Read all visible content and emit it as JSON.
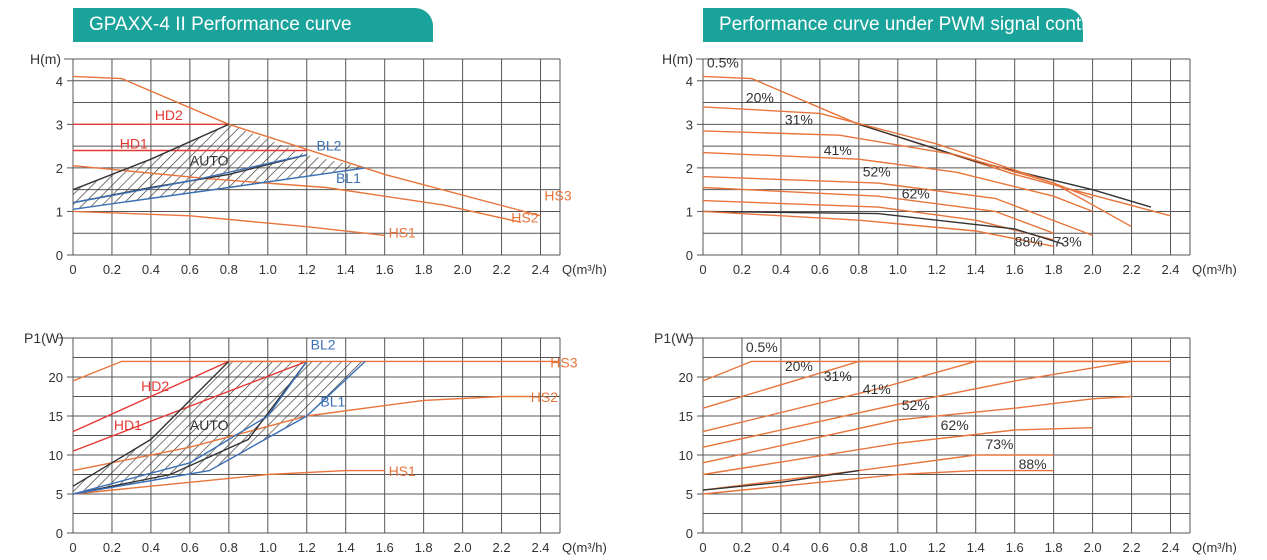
{
  "headers": {
    "left": "GPAXX-4 II Performance curve",
    "right": "Performance curve under PWM signal control"
  },
  "colors": {
    "orange": "#e8743b",
    "red": "#e53935",
    "blue": "#3a6fb5",
    "dark": "#333333",
    "teal": "#1aa39a"
  },
  "chart_data": [
    {
      "id": "hq_main",
      "type": "line",
      "ylabel": "H(m)",
      "xlabel": "Q(m³/h)",
      "xlim": [
        0,
        2.5
      ],
      "ylim": [
        0,
        4.5
      ],
      "xticks": [
        "0",
        "0.2",
        "0.4",
        "0.6",
        "0.8",
        "1.0",
        "1.2",
        "1.4",
        "1.6",
        "1.8",
        "2.0",
        "2.2",
        "2.4"
      ],
      "yticks": [
        "0",
        "1",
        "2",
        "3",
        "4"
      ],
      "series": [
        {
          "name": "HS3",
          "color": "orange",
          "points": [
            [
              0,
              4.1
            ],
            [
              0.25,
              4.05
            ],
            [
              0.8,
              3.0
            ],
            [
              1.6,
              1.85
            ],
            [
              2.4,
              0.9
            ]
          ]
        },
        {
          "name": "HS2",
          "color": "orange",
          "points": [
            [
              0,
              2.05
            ],
            [
              0.7,
              1.75
            ],
            [
              1.3,
              1.55
            ],
            [
              1.9,
              1.15
            ],
            [
              2.3,
              0.75
            ]
          ]
        },
        {
          "name": "HS1",
          "color": "orange",
          "points": [
            [
              0,
              1.0
            ],
            [
              0.6,
              0.9
            ],
            [
              1.2,
              0.65
            ],
            [
              1.6,
              0.45
            ]
          ]
        },
        {
          "name": "HD2",
          "color": "red",
          "points": [
            [
              0,
              3.0
            ],
            [
              0.8,
              3.0
            ]
          ]
        },
        {
          "name": "HD1",
          "color": "red",
          "points": [
            [
              0,
              2.4
            ],
            [
              1.2,
              2.4
            ]
          ]
        },
        {
          "name": "AUTO",
          "color": "dark",
          "points": [
            [
              0,
              1.5
            ],
            [
              0.4,
              2.2
            ],
            [
              0.8,
              3.0
            ]
          ]
        },
        {
          "name": "",
          "color": "dark",
          "points": [
            [
              0,
              1.2
            ],
            [
              0.4,
              1.55
            ],
            [
              0.8,
              1.85
            ],
            [
              1.2,
              2.3
            ]
          ]
        },
        {
          "name": "BL2",
          "color": "blue",
          "points": [
            [
              0,
              1.2
            ],
            [
              0.6,
              1.7
            ],
            [
              1.2,
              2.3
            ]
          ]
        },
        {
          "name": "BL1",
          "color": "blue",
          "points": [
            [
              0,
              1.05
            ],
            [
              0.8,
              1.55
            ],
            [
              1.5,
              2.0
            ]
          ]
        }
      ],
      "labels": [
        {
          "text": "HD2",
          "x": 0.42,
          "y": 3.1,
          "color": "red"
        },
        {
          "text": "HD1",
          "x": 0.24,
          "y": 2.45,
          "color": "red"
        },
        {
          "text": "AUTO",
          "x": 0.6,
          "y": 2.05,
          "color": "dark"
        },
        {
          "text": "BL2",
          "x": 1.25,
          "y": 2.4,
          "color": "blue"
        },
        {
          "text": "BL1",
          "x": 1.35,
          "y": 1.65,
          "color": "blue"
        },
        {
          "text": "HS3",
          "x": 2.42,
          "y": 1.25,
          "color": "orange"
        },
        {
          "text": "HS2",
          "x": 2.25,
          "y": 0.75,
          "color": "orange"
        },
        {
          "text": "HS1",
          "x": 1.62,
          "y": 0.4,
          "color": "orange"
        }
      ]
    },
    {
      "id": "hq_pwm",
      "type": "line",
      "ylabel": "H(m)",
      "xlabel": "Q(m³/h)",
      "xlim": [
        0,
        2.5
      ],
      "ylim": [
        0,
        4.5
      ],
      "xticks": [
        "0",
        "0.2",
        "0.4",
        "0.6",
        "0.8",
        "1.0",
        "1.2",
        "1.4",
        "1.6",
        "1.8",
        "2.0",
        "2.2",
        "2.4"
      ],
      "yticks": [
        "0",
        "1",
        "2",
        "3",
        "4"
      ],
      "series": [
        {
          "name": "0.5%",
          "color": "orange",
          "points": [
            [
              0,
              4.1
            ],
            [
              0.25,
              4.05
            ],
            [
              0.8,
              3.0
            ],
            [
              1.6,
              1.85
            ],
            [
              2.4,
              0.9
            ]
          ]
        },
        {
          "name": "",
          "color": "dark",
          "points": [
            [
              0.8,
              3.0
            ],
            [
              1.4,
              2.15
            ],
            [
              2.0,
              1.5
            ],
            [
              2.3,
              1.1
            ]
          ]
        },
        {
          "name": "20%",
          "color": "orange",
          "points": [
            [
              0,
              3.4
            ],
            [
              0.6,
              3.25
            ],
            [
              1.2,
              2.55
            ],
            [
              1.8,
              1.65
            ],
            [
              2.2,
              0.65
            ]
          ]
        },
        {
          "name": "31%",
          "color": "orange",
          "points": [
            [
              0,
              2.85
            ],
            [
              0.7,
              2.75
            ],
            [
              1.3,
              2.3
            ],
            [
              1.8,
              1.65
            ],
            [
              2.0,
              1.3
            ]
          ]
        },
        {
          "name": "41%",
          "color": "orange",
          "points": [
            [
              0,
              2.35
            ],
            [
              0.8,
              2.2
            ],
            [
              1.3,
              1.9
            ],
            [
              1.8,
              1.35
            ],
            [
              2.0,
              1.0
            ]
          ]
        },
        {
          "name": "52%",
          "color": "orange",
          "points": [
            [
              0,
              1.8
            ],
            [
              0.9,
              1.65
            ],
            [
              1.5,
              1.3
            ],
            [
              2.0,
              0.45
            ]
          ]
        },
        {
          "name": "62%",
          "color": "orange",
          "points": [
            [
              0,
              1.55
            ],
            [
              0.9,
              1.35
            ],
            [
              1.5,
              1.0
            ],
            [
              1.8,
              0.5
            ]
          ]
        },
        {
          "name": "73%",
          "color": "orange",
          "points": [
            [
              0,
              1.25
            ],
            [
              0.9,
              1.1
            ],
            [
              1.4,
              0.8
            ],
            [
              1.8,
              0.35
            ]
          ]
        },
        {
          "name": "",
          "color": "dark",
          "points": [
            [
              0,
              1.0
            ],
            [
              0.9,
              0.95
            ],
            [
              1.6,
              0.6
            ],
            [
              1.85,
              0.25
            ]
          ]
        },
        {
          "name": "88%",
          "color": "orange",
          "points": [
            [
              0,
              1.0
            ],
            [
              0.8,
              0.8
            ],
            [
              1.4,
              0.55
            ],
            [
              1.8,
              0.2
            ]
          ]
        }
      ],
      "labels": [
        {
          "text": "0.5%",
          "x": 0.02,
          "y": 4.3,
          "color": "dark"
        },
        {
          "text": "20%",
          "x": 0.22,
          "y": 3.5,
          "color": "dark"
        },
        {
          "text": "31%",
          "x": 0.42,
          "y": 3.0,
          "color": "dark"
        },
        {
          "text": "41%",
          "x": 0.62,
          "y": 2.3,
          "color": "dark"
        },
        {
          "text": "52%",
          "x": 0.82,
          "y": 1.8,
          "color": "dark"
        },
        {
          "text": "62%",
          "x": 1.02,
          "y": 1.3,
          "color": "dark"
        },
        {
          "text": "88%",
          "x": 1.6,
          "y": 0.2,
          "color": "dark"
        },
        {
          "text": "73%",
          "x": 1.8,
          "y": 0.2,
          "color": "dark"
        }
      ]
    },
    {
      "id": "pq_main",
      "type": "line",
      "ylabel": "P1(W)",
      "xlabel": "Q(m³/h)",
      "xlim": [
        0,
        2.5
      ],
      "ylim": [
        0,
        25
      ],
      "xticks": [
        "0",
        "0.2",
        "0.4",
        "0.6",
        "0.8",
        "1.0",
        "1.2",
        "1.4",
        "1.6",
        "1.8",
        "2.0",
        "2.2",
        "2.4"
      ],
      "yticks": [
        "0",
        "5",
        "10",
        "15",
        "20"
      ],
      "series": [
        {
          "name": "HS3",
          "color": "orange",
          "points": [
            [
              0,
              19.5
            ],
            [
              0.25,
              22
            ],
            [
              2.5,
              22
            ]
          ]
        },
        {
          "name": "HS2",
          "color": "orange",
          "points": [
            [
              0,
              8
            ],
            [
              0.6,
              11
            ],
            [
              1.2,
              15
            ],
            [
              1.8,
              17
            ],
            [
              2.2,
              17.5
            ],
            [
              2.35,
              17.5
            ]
          ]
        },
        {
          "name": "HS1",
          "color": "orange",
          "points": [
            [
              0,
              5
            ],
            [
              0.6,
              6.5
            ],
            [
              1.0,
              7.5
            ],
            [
              1.4,
              8
            ],
            [
              1.6,
              8
            ]
          ]
        },
        {
          "name": "HD2",
          "color": "red",
          "points": [
            [
              0,
              13
            ],
            [
              0.8,
              22
            ]
          ]
        },
        {
          "name": "HD1",
          "color": "red",
          "points": [
            [
              0,
              10.5
            ],
            [
              1.2,
              22
            ]
          ]
        },
        {
          "name": "AUTO",
          "color": "dark",
          "points": [
            [
              0,
              6
            ],
            [
              0.4,
              12
            ],
            [
              0.8,
              22
            ]
          ]
        },
        {
          "name": "",
          "color": "dark",
          "points": [
            [
              0,
              5
            ],
            [
              0.5,
              7.5
            ],
            [
              0.9,
              12
            ],
            [
              1.2,
              22
            ]
          ]
        },
        {
          "name": "BL2",
          "color": "blue",
          "points": [
            [
              0,
              5
            ],
            [
              0.6,
              9
            ],
            [
              1.0,
              15
            ],
            [
              1.2,
              22
            ]
          ]
        },
        {
          "name": "BL1",
          "color": "blue",
          "points": [
            [
              0,
              5
            ],
            [
              0.7,
              8
            ],
            [
              1.2,
              15
            ],
            [
              1.5,
              22
            ]
          ]
        },
        {
          "name": "",
          "color": "orange",
          "points": [
            [
              0.8,
              22
            ],
            [
              1.2,
              22
            ]
          ]
        }
      ],
      "labels": [
        {
          "text": "HD2",
          "x": 0.35,
          "y": 18.2,
          "color": "red"
        },
        {
          "text": "HD1",
          "x": 0.21,
          "y": 13.2,
          "color": "red"
        },
        {
          "text": "AUTO",
          "x": 0.6,
          "y": 13.2,
          "color": "dark"
        },
        {
          "text": "BL2",
          "x": 1.22,
          "y": 23.5,
          "color": "blue"
        },
        {
          "text": "BL1",
          "x": 1.27,
          "y": 16.2,
          "color": "blue"
        },
        {
          "text": "HS3",
          "x": 2.45,
          "y": 21.2,
          "color": "orange"
        },
        {
          "text": "HS2",
          "x": 2.35,
          "y": 16.8,
          "color": "orange"
        },
        {
          "text": "HS1",
          "x": 1.62,
          "y": 7.3,
          "color": "orange"
        }
      ]
    },
    {
      "id": "pq_pwm",
      "type": "line",
      "ylabel": "P1(W)",
      "xlabel": "Q(m³/h)",
      "xlim": [
        0,
        2.5
      ],
      "ylim": [
        0,
        25
      ],
      "xticks": [
        "0",
        "0.2",
        "0.4",
        "0.6",
        "0.8",
        "1.0",
        "1.2",
        "1.4",
        "1.6",
        "1.8",
        "2.0",
        "2.2",
        "2.4"
      ],
      "yticks": [
        "0",
        "5",
        "10",
        "15",
        "20"
      ],
      "series": [
        {
          "name": "0.5%",
          "color": "orange",
          "points": [
            [
              0,
              19.5
            ],
            [
              0.25,
              22
            ],
            [
              2.4,
              22
            ]
          ]
        },
        {
          "name": "20%",
          "color": "orange",
          "points": [
            [
              0,
              16
            ],
            [
              0.8,
              22
            ],
            [
              2.2,
              22
            ]
          ]
        },
        {
          "name": "31%",
          "color": "orange",
          "points": [
            [
              0,
              13
            ],
            [
              0.9,
              18.5
            ],
            [
              1.4,
              22
            ]
          ]
        },
        {
          "name": "41%",
          "color": "orange",
          "points": [
            [
              0,
              11
            ],
            [
              1.0,
              16.5
            ],
            [
              1.6,
              19.5
            ],
            [
              2.2,
              22
            ]
          ]
        },
        {
          "name": "52%",
          "color": "orange",
          "points": [
            [
              0,
              9
            ],
            [
              1.0,
              14.5
            ],
            [
              1.6,
              16
            ],
            [
              2.0,
              17.2
            ],
            [
              2.2,
              17.5
            ]
          ]
        },
        {
          "name": "62%",
          "color": "orange",
          "points": [
            [
              0,
              7.5
            ],
            [
              1.0,
              11.5
            ],
            [
              1.6,
              13.2
            ],
            [
              2.0,
              13.5
            ]
          ]
        },
        {
          "name": "73%",
          "color": "orange",
          "points": [
            [
              0,
              5.5
            ],
            [
              0.8,
              8
            ],
            [
              1.4,
              10
            ],
            [
              1.8,
              10
            ]
          ]
        },
        {
          "name": "",
          "color": "dark",
          "points": [
            [
              0,
              5.5
            ],
            [
              0.4,
              6.5
            ],
            [
              0.8,
              8
            ]
          ]
        },
        {
          "name": "88%",
          "color": "orange",
          "points": [
            [
              0,
              5
            ],
            [
              0.6,
              6.5
            ],
            [
              1.0,
              7.5
            ],
            [
              1.4,
              8
            ],
            [
              1.8,
              8
            ]
          ]
        }
      ],
      "labels": [
        {
          "text": "0.5%",
          "x": 0.22,
          "y": 23.2,
          "color": "dark"
        },
        {
          "text": "20%",
          "x": 0.42,
          "y": 20.8,
          "color": "dark"
        },
        {
          "text": "31%",
          "x": 0.62,
          "y": 19.5,
          "color": "dark"
        },
        {
          "text": "41%",
          "x": 0.82,
          "y": 17.8,
          "color": "dark"
        },
        {
          "text": "52%",
          "x": 1.02,
          "y": 15.8,
          "color": "dark"
        },
        {
          "text": "62%",
          "x": 1.22,
          "y": 13.2,
          "color": "dark"
        },
        {
          "text": "73%",
          "x": 1.45,
          "y": 10.8,
          "color": "dark"
        },
        {
          "text": "88%",
          "x": 1.62,
          "y": 8.2,
          "color": "dark"
        }
      ]
    }
  ]
}
